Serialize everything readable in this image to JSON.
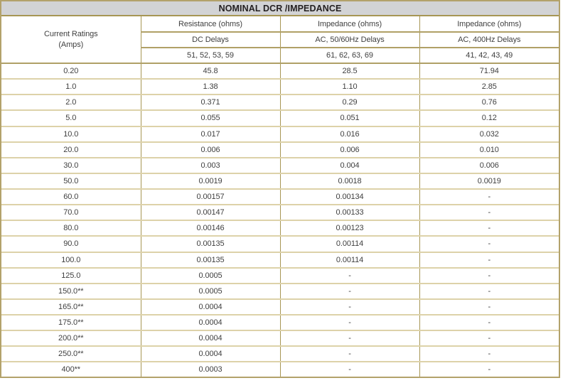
{
  "title": "NOMINAL DCR /IMPEDANCE",
  "table": {
    "row_header": {
      "line1": "Current Ratings",
      "line2": "(Amps)"
    },
    "columns": [
      {
        "unit": "Resistance (ohms)",
        "delay_type": "DC Delays",
        "series_codes": "51, 52, 53, 59"
      },
      {
        "unit": "Impedance (ohms)",
        "delay_type": "AC, 50/60Hz Delays",
        "series_codes": "61, 62, 63, 69"
      },
      {
        "unit": "Impedance (ohms)",
        "delay_type": "AC, 400Hz Delays",
        "series_codes": "41, 42, 43, 49"
      }
    ],
    "rows": [
      [
        "0.20",
        "45.8",
        "28.5",
        "71.94"
      ],
      [
        "1.0",
        "1.38",
        "1.10",
        "2.85"
      ],
      [
        "2.0",
        "0.371",
        "0.29",
        "0.76"
      ],
      [
        "5.0",
        "0.055",
        "0.051",
        "0.12"
      ],
      [
        "10.0",
        "0.017",
        "0.016",
        "0.032"
      ],
      [
        "20.0",
        "0.006",
        "0.006",
        "0.010"
      ],
      [
        "30.0",
        "0.003",
        "0.004",
        "0.006"
      ],
      [
        "50.0",
        "0.0019",
        "0.0018",
        "0.0019"
      ],
      [
        "60.0",
        "0.00157",
        "0.00134",
        "-"
      ],
      [
        "70.0",
        "0.00147",
        "0.00133",
        "-"
      ],
      [
        "80.0",
        "0.00146",
        "0.00123",
        "-"
      ],
      [
        "90.0",
        "0.00135",
        "0.00114",
        "-"
      ],
      [
        "100.0",
        "0.00135",
        "0.00114",
        "-"
      ],
      [
        "125.0",
        "0.0005",
        "-",
        "-"
      ],
      [
        "150.0**",
        "0.0005",
        "-",
        "-"
      ],
      [
        "165.0**",
        "0.0004",
        "-",
        "-"
      ],
      [
        "175.0**",
        "0.0004",
        "-",
        "-"
      ],
      [
        "200.0**",
        "0.0004",
        "-",
        "-"
      ],
      [
        "250.0**",
        "0.0004",
        "-",
        "-"
      ],
      [
        "400**",
        "0.0003",
        "-",
        "-"
      ]
    ]
  },
  "colors": {
    "outer_border": "#b3a26b",
    "vertical_border": "#a69654",
    "header_rule": "#b0a066",
    "row_rule": "#ddd2a9",
    "title_background": "#d2d3d5",
    "text": "#3f3f3f"
  }
}
